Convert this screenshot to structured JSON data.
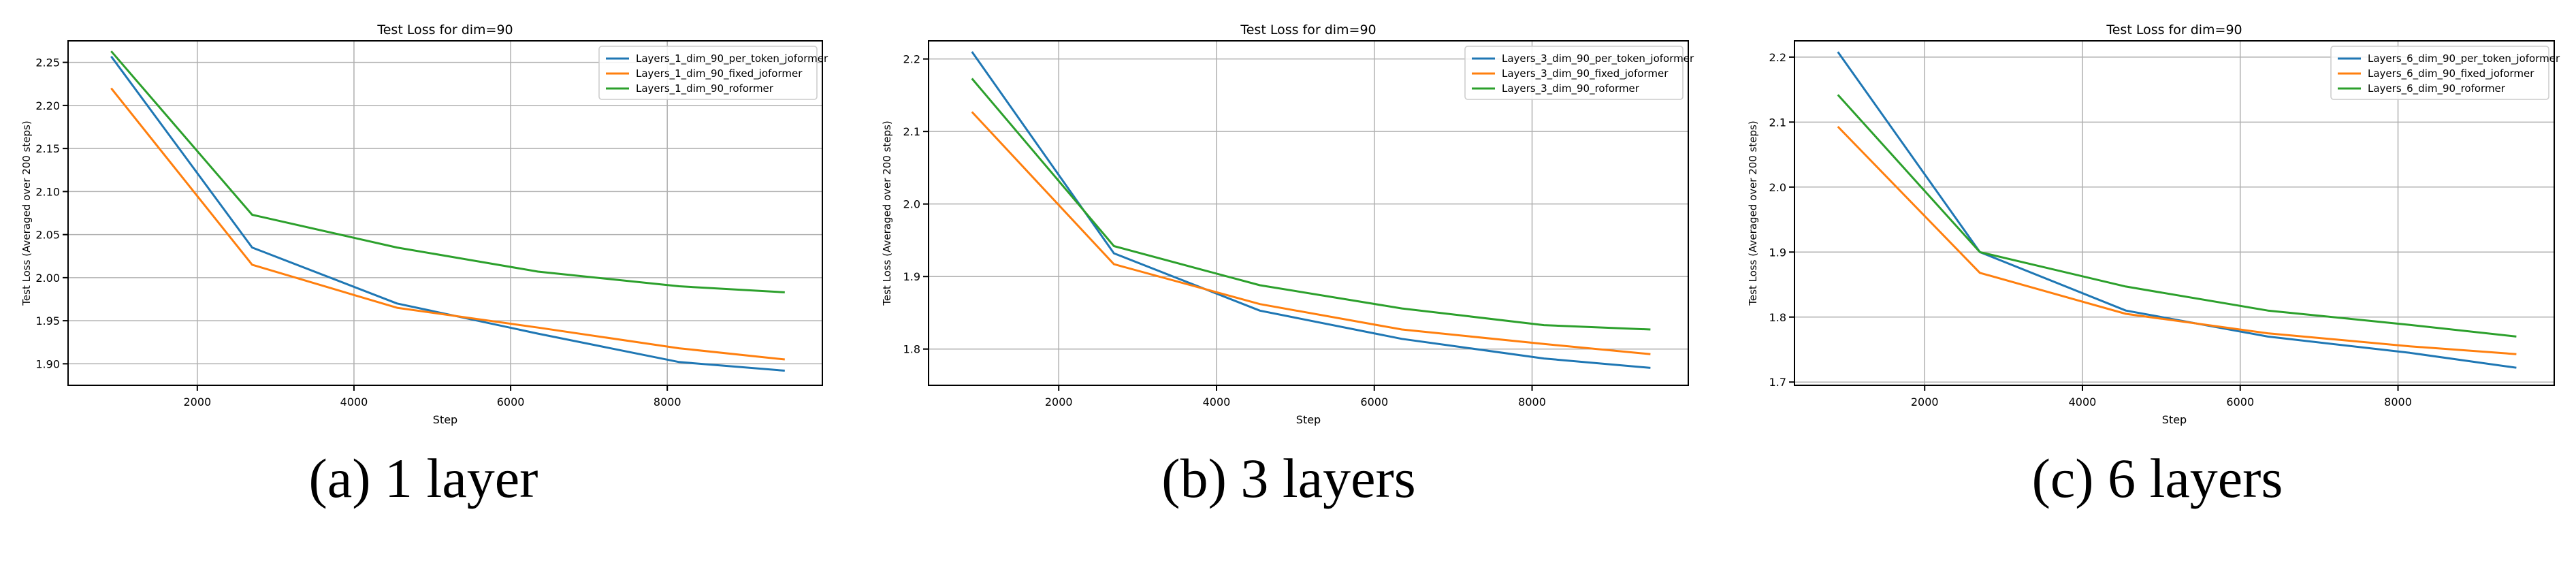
{
  "chart_data": [
    {
      "type": "line",
      "title": "Test Loss for dim=90",
      "xlabel": "Step",
      "ylabel": "Test Loss (Averaged over 200 steps)",
      "caption": "(a) 1 layer",
      "xlim": [
        350,
        9980
      ],
      "ylim": [
        1.875,
        2.275
      ],
      "xticks": [
        2000,
        4000,
        6000,
        8000
      ],
      "yticks": [
        1.9,
        1.95,
        2.0,
        2.05,
        2.1,
        2.15,
        2.2,
        2.25
      ],
      "ytick_labels": [
        "1.90",
        "1.95",
        "2.00",
        "2.05",
        "2.10",
        "2.15",
        "2.20",
        "2.25"
      ],
      "grid": true,
      "legend_position": "top-right",
      "series": [
        {
          "name": "Layers_1_dim_90_per_token_joformer",
          "color": "#1f77b4",
          "x": [
            900,
            2700,
            4550,
            6350,
            8150,
            9500
          ],
          "y": [
            2.257,
            2.035,
            1.97,
            1.935,
            1.902,
            1.892
          ]
        },
        {
          "name": "Layers_1_dim_90_fixed_joformer",
          "color": "#ff7f0e",
          "x": [
            900,
            2700,
            4550,
            6350,
            8150,
            9500
          ],
          "y": [
            2.22,
            2.015,
            1.965,
            1.942,
            1.918,
            1.905
          ]
        },
        {
          "name": "Layers_1_dim_90_roformer",
          "color": "#2ca02c",
          "x": [
            900,
            2700,
            4550,
            6350,
            8150,
            9500
          ],
          "y": [
            2.263,
            2.073,
            2.035,
            2.007,
            1.99,
            1.983
          ]
        }
      ]
    },
    {
      "type": "line",
      "title": "Test Loss for dim=90",
      "xlabel": "Step",
      "ylabel": "Test Loss (Averaged over 200 steps)",
      "caption": "(b) 3 layers",
      "xlim": [
        350,
        9980
      ],
      "ylim": [
        1.75,
        2.225
      ],
      "xticks": [
        2000,
        4000,
        6000,
        8000
      ],
      "yticks": [
        1.8,
        1.9,
        2.0,
        2.1,
        2.2
      ],
      "ytick_labels": [
        "1.8",
        "1.9",
        "2.0",
        "2.1",
        "2.2"
      ],
      "grid": true,
      "legend_position": "top-right",
      "series": [
        {
          "name": "Layers_3_dim_90_per_token_joformer",
          "color": "#1f77b4",
          "x": [
            900,
            2700,
            4550,
            6350,
            8150,
            9500
          ],
          "y": [
            2.21,
            1.932,
            1.853,
            1.814,
            1.787,
            1.774
          ]
        },
        {
          "name": "Layers_3_dim_90_fixed_joformer",
          "color": "#ff7f0e",
          "x": [
            900,
            2700,
            4550,
            6350,
            8150,
            9500
          ],
          "y": [
            2.127,
            1.917,
            1.862,
            1.827,
            1.807,
            1.793
          ]
        },
        {
          "name": "Layers_3_dim_90_roformer",
          "color": "#2ca02c",
          "x": [
            900,
            2700,
            4550,
            6350,
            8150,
            9500
          ],
          "y": [
            2.173,
            1.942,
            1.888,
            1.856,
            1.833,
            1.827
          ]
        }
      ]
    },
    {
      "type": "line",
      "title": "Test Loss for dim=90",
      "xlabel": "Step",
      "ylabel": "Test Loss (Averaged over 200 steps)",
      "caption": "(c) 6 layers",
      "xlim": [
        350,
        9980
      ],
      "ylim": [
        1.695,
        2.225
      ],
      "xticks": [
        2000,
        4000,
        6000,
        8000
      ],
      "yticks": [
        1.7,
        1.8,
        1.9,
        2.0,
        2.1,
        2.2
      ],
      "ytick_labels": [
        "1.7",
        "1.8",
        "1.9",
        "2.0",
        "2.1",
        "2.2"
      ],
      "grid": true,
      "legend_position": "top-right",
      "series": [
        {
          "name": "Layers_6_dim_90_per_token_joformer",
          "color": "#1f77b4",
          "x": [
            900,
            2700,
            4550,
            6350,
            8150,
            9500
          ],
          "y": [
            2.208,
            1.9,
            1.81,
            1.77,
            1.745,
            1.722
          ]
        },
        {
          "name": "Layers_6_dim_90_fixed_joformer",
          "color": "#ff7f0e",
          "x": [
            900,
            2700,
            4550,
            6350,
            8150,
            9500
          ],
          "y": [
            2.093,
            1.868,
            1.805,
            1.775,
            1.755,
            1.743
          ]
        },
        {
          "name": "Layers_6_dim_90_roformer",
          "color": "#2ca02c",
          "x": [
            900,
            2700,
            4550,
            6350,
            8150,
            9500
          ],
          "y": [
            2.142,
            1.9,
            1.847,
            1.81,
            1.788,
            1.77
          ]
        }
      ]
    }
  ]
}
